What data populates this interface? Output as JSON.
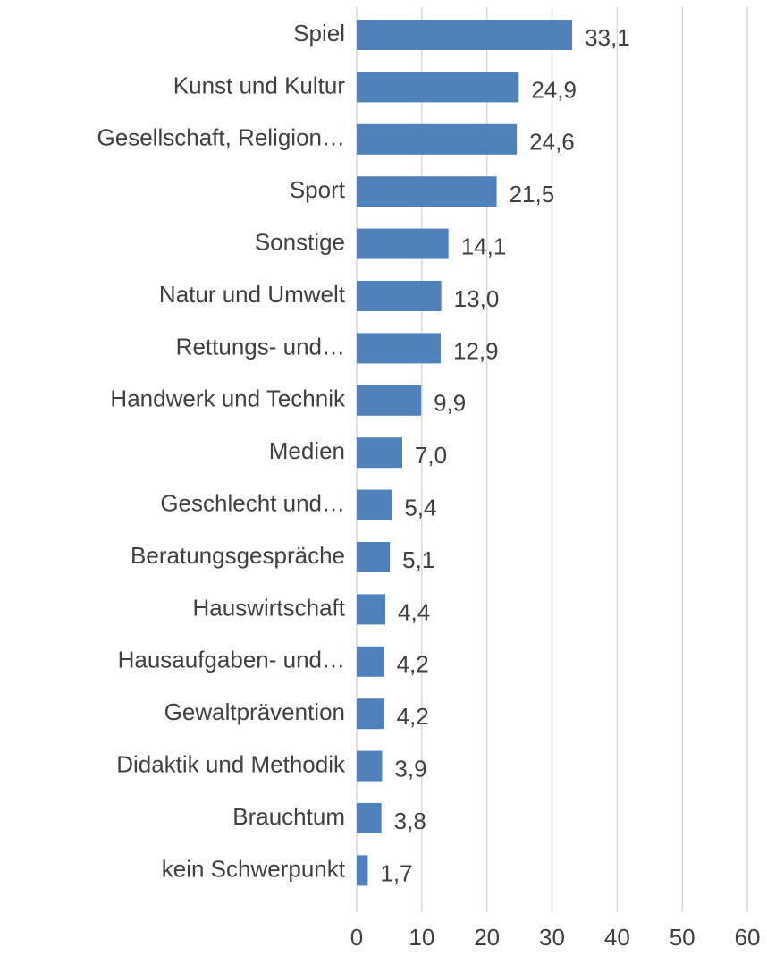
{
  "chart_data": {
    "type": "hbar",
    "categories": [
      "Spiel",
      "Kunst und Kultur",
      "Gesellschaft, Religion…",
      "Sport",
      "Sonstige",
      "Natur und Umwelt",
      "Rettungs- und…",
      "Handwerk und Technik",
      "Medien",
      "Geschlecht und…",
      "Beratungsgespräche",
      "Hauswirtschaft",
      "Hausaufgaben- und…",
      "Gewaltprävention",
      "Didaktik und Methodik",
      "Brauchtum",
      "kein Schwerpunkt"
    ],
    "values": [
      33.1,
      24.9,
      24.6,
      21.5,
      14.1,
      13.0,
      12.9,
      9.9,
      7.0,
      5.4,
      5.1,
      4.4,
      4.2,
      4.2,
      3.9,
      3.8,
      1.7
    ],
    "value_labels": [
      "33,1",
      "24,9",
      "24,6",
      "21,5",
      "14,1",
      "13,0",
      "12,9",
      "9,9",
      "7,0",
      "5,4",
      "5,1",
      "4,4",
      "4,2",
      "4,2",
      "3,9",
      "3,8",
      "1,7"
    ],
    "color": "#4f81bd",
    "xlim": [
      0,
      60
    ],
    "xticks": [
      0,
      10,
      20,
      30,
      40,
      50,
      60
    ],
    "grid": true
  }
}
